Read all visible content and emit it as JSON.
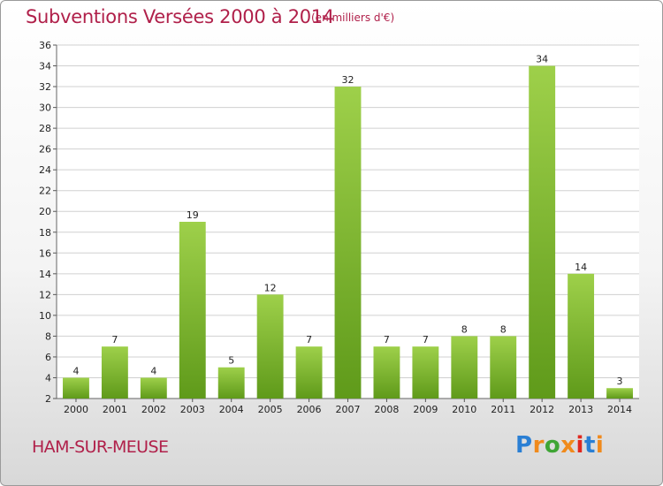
{
  "header": {
    "title": "Subventions Versées 2000 à 2014",
    "subtitle": "(en milliers d'€)"
  },
  "footer": {
    "place": "HAM-SUR-MEUSE",
    "logo": "Proxiti"
  },
  "colors": {
    "title": "#b0204a",
    "bar_light": "#9ed04a",
    "bar_dark": "#5f9a1a",
    "grid": "#d0d0d0"
  },
  "chart_data": {
    "type": "bar",
    "title": "Subventions Versées 2000 à 2014",
    "xlabel": "",
    "ylabel": "",
    "categories": [
      "2000",
      "2001",
      "2002",
      "2003",
      "2004",
      "2005",
      "2006",
      "2007",
      "2008",
      "2009",
      "2010",
      "2011",
      "2012",
      "2013",
      "2014"
    ],
    "values": [
      4,
      7,
      4,
      19,
      5,
      12,
      7,
      32,
      7,
      7,
      8,
      8,
      34,
      14,
      3
    ],
    "ylim": [
      2,
      36
    ],
    "yticks": [
      2,
      4,
      6,
      8,
      10,
      12,
      14,
      16,
      18,
      20,
      22,
      24,
      26,
      28,
      30,
      32,
      34,
      36
    ],
    "grid": true,
    "legend": "none"
  }
}
